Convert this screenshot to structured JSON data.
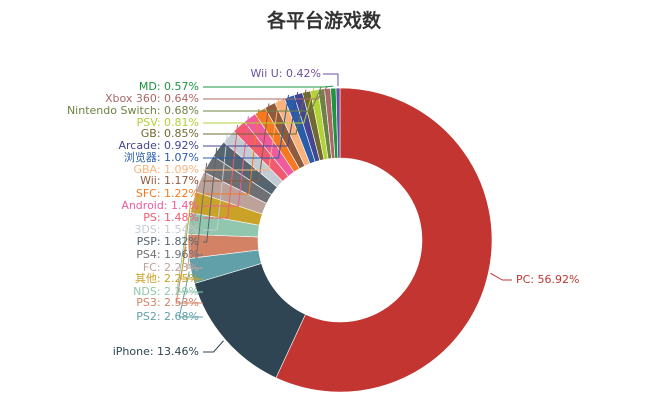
{
  "chart_data": {
    "type": "pie",
    "title": "各平台游戏数",
    "donut": true,
    "slices": [
      {
        "name": "PC",
        "value": 56.92,
        "color": "#c23531"
      },
      {
        "name": "iPhone",
        "value": 13.46,
        "color": "#2f4554"
      },
      {
        "name": "PS2",
        "value": 2.68,
        "color": "#61a0a8"
      },
      {
        "name": "PS3",
        "value": 2.53,
        "color": "#d48265"
      },
      {
        "name": "NDS",
        "value": 2.29,
        "color": "#91c7ae"
      },
      {
        "name": "其他",
        "value": 2.25,
        "color": "#c9a227"
      },
      {
        "name": "FC",
        "value": 2.23,
        "color": "#bda29a"
      },
      {
        "name": "PS4",
        "value": 1.96,
        "color": "#6e7074"
      },
      {
        "name": "PSP",
        "value": 1.82,
        "color": "#546570"
      },
      {
        "name": "3DS",
        "value": 1.54,
        "color": "#c4ccd3"
      },
      {
        "name": "PS",
        "value": 1.48,
        "color": "#f05b72"
      },
      {
        "name": "Android",
        "value": 1.4,
        "color": "#ef5b9c"
      },
      {
        "name": "SFC",
        "value": 1.22,
        "color": "#f47920"
      },
      {
        "name": "Wii",
        "value": 1.17,
        "color": "#905a3d"
      },
      {
        "name": "GBA",
        "value": 1.09,
        "color": "#fab27b"
      },
      {
        "name": "浏览器",
        "value": 1.07,
        "color": "#2a5caa"
      },
      {
        "name": "Arcade",
        "value": 0.92,
        "color": "#444693"
      },
      {
        "name": "GB",
        "value": 0.85,
        "color": "#726930"
      },
      {
        "name": "PSV",
        "value": 0.81,
        "color": "#b2d235"
      },
      {
        "name": "Nintendo Switch",
        "value": 0.68,
        "color": "#6d8346"
      },
      {
        "name": "Xbox 360",
        "value": 0.64,
        "color": "#ac6767"
      },
      {
        "name": "MD",
        "value": 0.57,
        "color": "#1d953f"
      },
      {
        "name": "Wii U",
        "value": 0.42,
        "color": "#6950a1"
      }
    ],
    "labels": [
      "PC: 56.92%",
      "iPhone: 13.46%",
      "PS2: 2.68%",
      "PS3: 2.53%",
      "NDS: 2.29%",
      "其他: 2.25%",
      "FC: 2.23%",
      "PS4: 1.96%",
      "PSP: 1.82%",
      "3DS: 1.54%",
      "PS: 1.48%",
      "Android: 1.4%",
      "SFC: 1.22%",
      "Wii: 1.17%",
      "GBA: 1.09%",
      "浏览器: 1.07%",
      "Arcade: 0.92%",
      "GB: 0.85%",
      "PSV: 0.81%",
      "Nintendo Switch: 0.68%",
      "Xbox 360: 0.64%",
      "MD: 0.57%",
      "Wii U: 0.42%"
    ]
  }
}
